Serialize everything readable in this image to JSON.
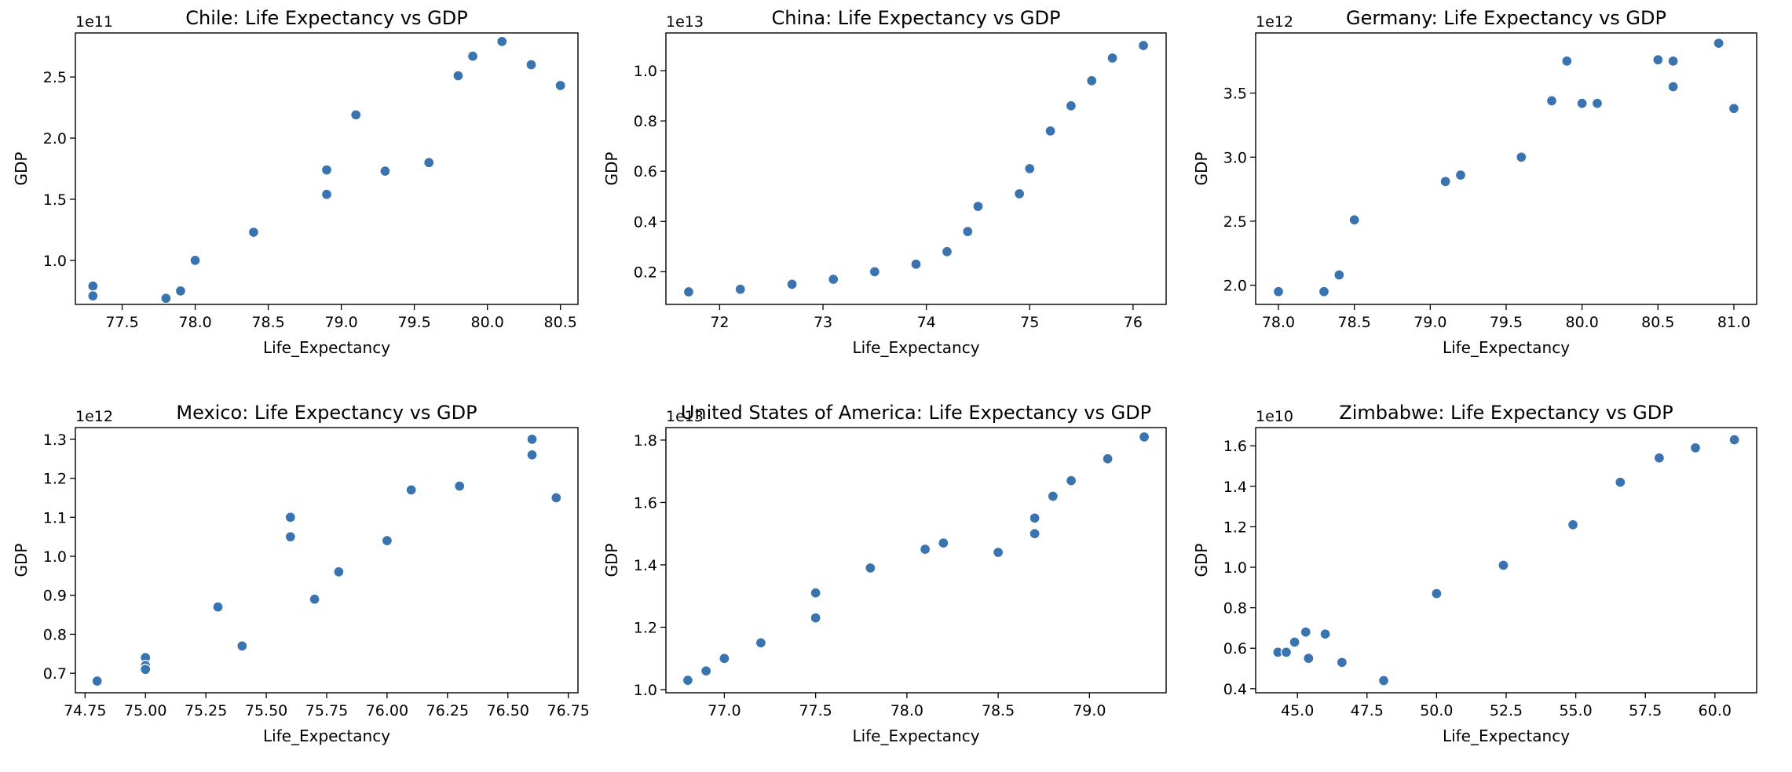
{
  "figure": {
    "background": "#ffffff",
    "marker_color": "#3a74b0"
  },
  "chart_data": [
    {
      "type": "scatter",
      "title": "Chile: Life Expectancy vs GDP",
      "xlabel": "Life_Expectancy",
      "ylabel": "GDP",
      "y_offset_label": "1e11",
      "xlim": [
        77.18,
        80.62
      ],
      "ylim": [
        0.64,
        2.86
      ],
      "xticks": [
        77.5,
        78.0,
        78.5,
        79.0,
        79.5,
        80.0,
        80.5
      ],
      "xtick_labels": [
        "77.5",
        "78.0",
        "78.5",
        "79.0",
        "79.5",
        "80.0",
        "80.5"
      ],
      "yticks": [
        1.0,
        1.5,
        2.0,
        2.5
      ],
      "ytick_labels": [
        "1.0",
        "1.5",
        "2.0",
        "2.5"
      ],
      "points": [
        {
          "x": 77.3,
          "y": 0.79
        },
        {
          "x": 77.3,
          "y": 0.71
        },
        {
          "x": 77.8,
          "y": 0.69
        },
        {
          "x": 77.9,
          "y": 0.75
        },
        {
          "x": 78.0,
          "y": 1.0
        },
        {
          "x": 78.4,
          "y": 1.23
        },
        {
          "x": 78.9,
          "y": 1.74
        },
        {
          "x": 78.9,
          "y": 1.54
        },
        {
          "x": 79.1,
          "y": 2.19
        },
        {
          "x": 79.3,
          "y": 1.73
        },
        {
          "x": 79.6,
          "y": 1.8
        },
        {
          "x": 79.8,
          "y": 2.51
        },
        {
          "x": 79.9,
          "y": 2.67
        },
        {
          "x": 80.1,
          "y": 2.79
        },
        {
          "x": 80.3,
          "y": 2.6
        },
        {
          "x": 80.5,
          "y": 2.43
        }
      ]
    },
    {
      "type": "scatter",
      "title": "China: Life Expectancy vs GDP",
      "xlabel": "Life_Expectancy",
      "ylabel": "GDP",
      "y_offset_label": "1e13",
      "xlim": [
        71.48,
        76.32
      ],
      "ylim": [
        0.07,
        1.15
      ],
      "xticks": [
        72,
        73,
        74,
        75,
        76
      ],
      "xtick_labels": [
        "72",
        "73",
        "74",
        "75",
        "76"
      ],
      "yticks": [
        0.2,
        0.4,
        0.6,
        0.8,
        1.0
      ],
      "ytick_labels": [
        "0.2",
        "0.4",
        "0.6",
        "0.8",
        "1.0"
      ],
      "points": [
        {
          "x": 71.7,
          "y": 0.12
        },
        {
          "x": 72.2,
          "y": 0.13
        },
        {
          "x": 72.7,
          "y": 0.15
        },
        {
          "x": 73.1,
          "y": 0.17
        },
        {
          "x": 73.5,
          "y": 0.2
        },
        {
          "x": 73.9,
          "y": 0.23
        },
        {
          "x": 74.2,
          "y": 0.28
        },
        {
          "x": 74.4,
          "y": 0.36
        },
        {
          "x": 74.5,
          "y": 0.46
        },
        {
          "x": 74.9,
          "y": 0.51
        },
        {
          "x": 75.0,
          "y": 0.61
        },
        {
          "x": 75.2,
          "y": 0.76
        },
        {
          "x": 75.4,
          "y": 0.86
        },
        {
          "x": 75.6,
          "y": 0.96
        },
        {
          "x": 75.8,
          "y": 1.05
        },
        {
          "x": 76.1,
          "y": 1.1
        }
      ]
    },
    {
      "type": "scatter",
      "title": "Germany: Life Expectancy vs GDP",
      "xlabel": "Life_Expectancy",
      "ylabel": "GDP",
      "y_offset_label": "1e12",
      "xlim": [
        77.85,
        81.15
      ],
      "ylim": [
        1.85,
        3.97
      ],
      "xticks": [
        78.0,
        78.5,
        79.0,
        79.5,
        80.0,
        80.5,
        81.0
      ],
      "xtick_labels": [
        "78.0",
        "78.5",
        "79.0",
        "79.5",
        "80.0",
        "80.5",
        "81.0"
      ],
      "yticks": [
        2.0,
        2.5,
        3.0,
        3.5
      ],
      "ytick_labels": [
        "2.0",
        "2.5",
        "3.0",
        "3.5"
      ],
      "points": [
        {
          "x": 78.0,
          "y": 1.95
        },
        {
          "x": 78.3,
          "y": 1.95
        },
        {
          "x": 78.4,
          "y": 2.08
        },
        {
          "x": 78.5,
          "y": 2.51
        },
        {
          "x": 79.1,
          "y": 2.81
        },
        {
          "x": 79.2,
          "y": 2.86
        },
        {
          "x": 79.6,
          "y": 3.0
        },
        {
          "x": 79.8,
          "y": 3.44
        },
        {
          "x": 79.9,
          "y": 3.75
        },
        {
          "x": 80.0,
          "y": 3.42
        },
        {
          "x": 80.1,
          "y": 3.42
        },
        {
          "x": 80.5,
          "y": 3.76
        },
        {
          "x": 80.6,
          "y": 3.75
        },
        {
          "x": 80.6,
          "y": 3.55
        },
        {
          "x": 80.9,
          "y": 3.89
        },
        {
          "x": 81.0,
          "y": 3.38
        }
      ]
    },
    {
      "type": "scatter",
      "title": "Mexico: Life Expectancy vs GDP",
      "xlabel": "Life_Expectancy",
      "ylabel": "GDP",
      "y_offset_label": "1e12",
      "xlim": [
        74.71,
        76.79
      ],
      "ylim": [
        0.65,
        1.33
      ],
      "xticks": [
        74.75,
        75.0,
        75.25,
        75.5,
        75.75,
        76.0,
        76.25,
        76.5,
        76.75
      ],
      "xtick_labels": [
        "74.75",
        "75.00",
        "75.25",
        "75.50",
        "75.75",
        "76.00",
        "76.25",
        "76.50",
        "76.75"
      ],
      "yticks": [
        0.7,
        0.8,
        0.9,
        1.0,
        1.1,
        1.2,
        1.3
      ],
      "ytick_labels": [
        "0.7",
        "0.8",
        "0.9",
        "1.0",
        "1.1",
        "1.2",
        "1.3"
      ],
      "points": [
        {
          "x": 74.8,
          "y": 0.68
        },
        {
          "x": 75.0,
          "y": 0.74
        },
        {
          "x": 75.0,
          "y": 0.72
        },
        {
          "x": 75.0,
          "y": 0.71
        },
        {
          "x": 75.3,
          "y": 0.87
        },
        {
          "x": 75.4,
          "y": 0.77
        },
        {
          "x": 75.6,
          "y": 1.1
        },
        {
          "x": 75.6,
          "y": 1.05
        },
        {
          "x": 75.7,
          "y": 0.89
        },
        {
          "x": 75.8,
          "y": 0.96
        },
        {
          "x": 76.0,
          "y": 1.04
        },
        {
          "x": 76.1,
          "y": 1.17
        },
        {
          "x": 76.3,
          "y": 1.18
        },
        {
          "x": 76.6,
          "y": 1.3
        },
        {
          "x": 76.6,
          "y": 1.26
        },
        {
          "x": 76.7,
          "y": 1.15
        }
      ]
    },
    {
      "type": "scatter",
      "title": "United States of America: Life Expectancy vs GDP",
      "xlabel": "Life_Expectancy",
      "ylabel": "GDP",
      "y_offset_label": "1e13",
      "xlim": [
        76.68,
        79.42
      ],
      "ylim": [
        0.99,
        1.84
      ],
      "xticks": [
        77.0,
        77.5,
        78.0,
        78.5,
        79.0
      ],
      "xtick_labels": [
        "77.0",
        "77.5",
        "78.0",
        "78.5",
        "79.0"
      ],
      "yticks": [
        1.0,
        1.2,
        1.4,
        1.6,
        1.8
      ],
      "ytick_labels": [
        "1.0",
        "1.2",
        "1.4",
        "1.6",
        "1.8"
      ],
      "points": [
        {
          "x": 76.8,
          "y": 1.03
        },
        {
          "x": 76.9,
          "y": 1.06
        },
        {
          "x": 77.0,
          "y": 1.1
        },
        {
          "x": 77.2,
          "y": 1.15
        },
        {
          "x": 77.5,
          "y": 1.31
        },
        {
          "x": 77.5,
          "y": 1.23
        },
        {
          "x": 77.8,
          "y": 1.39
        },
        {
          "x": 78.1,
          "y": 1.45
        },
        {
          "x": 78.2,
          "y": 1.47
        },
        {
          "x": 78.5,
          "y": 1.44
        },
        {
          "x": 78.7,
          "y": 1.55
        },
        {
          "x": 78.7,
          "y": 1.5
        },
        {
          "x": 78.8,
          "y": 1.62
        },
        {
          "x": 78.9,
          "y": 1.67
        },
        {
          "x": 79.1,
          "y": 1.74
        },
        {
          "x": 79.3,
          "y": 1.81
        }
      ]
    },
    {
      "type": "scatter",
      "title": "Zimbabwe: Life Expectancy vs GDP",
      "xlabel": "Life_Expectancy",
      "ylabel": "GDP",
      "y_offset_label": "1e10",
      "xlim": [
        43.5,
        61.5
      ],
      "ylim": [
        0.38,
        1.69
      ],
      "xticks": [
        45.0,
        47.5,
        50.0,
        52.5,
        55.0,
        57.5,
        60.0
      ],
      "xtick_labels": [
        "45.0",
        "47.5",
        "50.0",
        "52.5",
        "55.0",
        "57.5",
        "60.0"
      ],
      "yticks": [
        0.4,
        0.6,
        0.8,
        1.0,
        1.2,
        1.4,
        1.6
      ],
      "ytick_labels": [
        "0.4",
        "0.6",
        "0.8",
        "1.0",
        "1.2",
        "1.4",
        "1.6"
      ],
      "points": [
        {
          "x": 44.3,
          "y": 0.58
        },
        {
          "x": 44.6,
          "y": 0.58
        },
        {
          "x": 44.9,
          "y": 0.63
        },
        {
          "x": 45.3,
          "y": 0.68
        },
        {
          "x": 45.4,
          "y": 0.55
        },
        {
          "x": 46.0,
          "y": 0.67
        },
        {
          "x": 46.6,
          "y": 0.53
        },
        {
          "x": 48.1,
          "y": 0.44
        },
        {
          "x": 50.0,
          "y": 0.87
        },
        {
          "x": 52.4,
          "y": 1.01
        },
        {
          "x": 54.9,
          "y": 1.21
        },
        {
          "x": 56.6,
          "y": 1.42
        },
        {
          "x": 58.0,
          "y": 1.54
        },
        {
          "x": 59.3,
          "y": 1.59
        },
        {
          "x": 60.7,
          "y": 1.63
        }
      ]
    }
  ]
}
